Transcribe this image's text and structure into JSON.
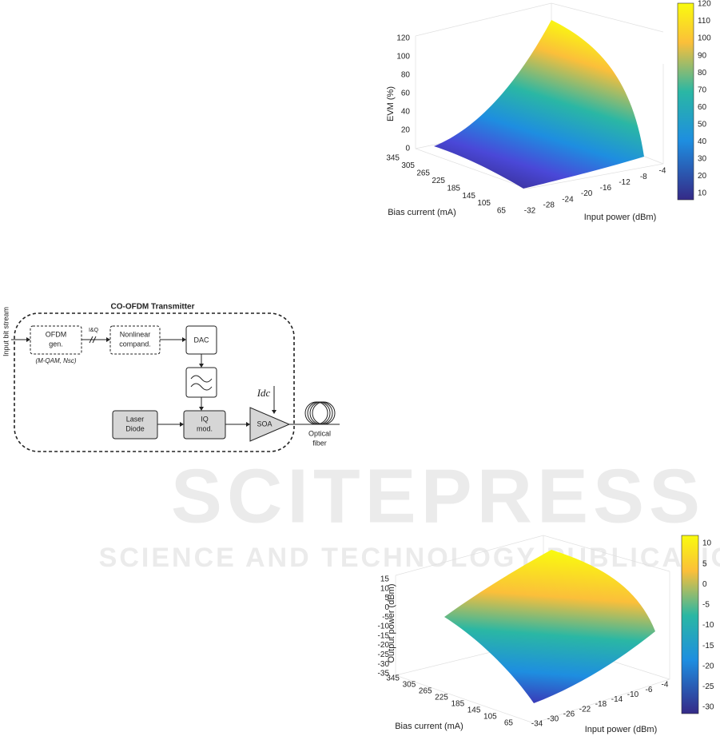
{
  "evm_plot": {
    "z_label": "EVM (%)",
    "z_ticks": [
      "0",
      "20",
      "40",
      "60",
      "80",
      "100",
      "120"
    ],
    "y_label": "Bias current (mA)",
    "y_ticks": [
      "345",
      "305",
      "265",
      "225",
      "185",
      "145",
      "105",
      "65"
    ],
    "x_label": "Input power (dBm)",
    "x_ticks": [
      "-32",
      "-28",
      "-24",
      "-20",
      "-16",
      "-12",
      "-8",
      "-4"
    ],
    "colorbar_ticks": [
      "120",
      "110",
      "100",
      "90",
      "80",
      "70",
      "60",
      "50",
      "40",
      "30",
      "20",
      "10"
    ]
  },
  "diagram": {
    "title": "CO-OFDM Transmitter",
    "input": "Input bit stream",
    "ofdm_gen": [
      "OFDM",
      "gen."
    ],
    "ofdm_params": "(M-QAM, Nsc)",
    "iq_label": "I&Q",
    "compander": [
      "Nonlinear",
      "compand."
    ],
    "dac": "DAC",
    "laser": [
      "Laser",
      "Diode"
    ],
    "iq_mod": [
      "IQ",
      "mod."
    ],
    "soa": "SOA",
    "bias": "Idc",
    "fiber": [
      "Optical",
      "fiber"
    ]
  },
  "output_plot": {
    "z_label": "Output power (dBm)",
    "z_ticks": [
      "15",
      "10",
      "5",
      "0",
      "-5",
      "-10",
      "-15",
      "-20",
      "-25",
      "-30",
      "-35"
    ],
    "y_label": "Bias current (mA)",
    "y_ticks": [
      "345",
      "305",
      "265",
      "225",
      "185",
      "145",
      "105",
      "65"
    ],
    "x_label": "Input power (dBm)",
    "x_ticks": [
      "-34",
      "-30",
      "-26",
      "-22",
      "-18",
      "-14",
      "-10",
      "-6",
      "-4"
    ],
    "colorbar_ticks": [
      "10",
      "5",
      "0",
      "-5",
      "-10",
      "-15",
      "-20",
      "-25",
      "-30"
    ]
  },
  "watermark": {
    "title": "SCITEPRESS",
    "subtitle": "SCIENCE AND TECHNOLOGY PUBLICATIONS"
  }
}
